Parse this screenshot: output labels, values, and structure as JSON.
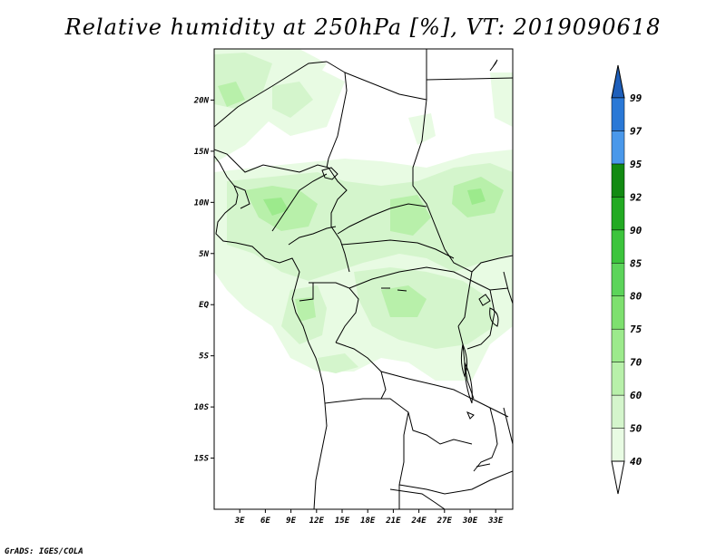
{
  "title": "Relative humidity at 250hPa [%], VT: 2019090618",
  "credit": "GrADS: IGES/COLA",
  "map": {
    "lon_range": [
      0,
      35
    ],
    "lat_range": [
      -20,
      25
    ],
    "lon_ticks": [
      "3E",
      "6E",
      "9E",
      "12E",
      "15E",
      "18E",
      "21E",
      "24E",
      "27E",
      "30E",
      "33E"
    ],
    "lat_ticks": [
      "20N",
      "15N",
      "10N",
      "5N",
      "EQ",
      "5S",
      "10S",
      "15S"
    ]
  },
  "colorbar": {
    "levels": [
      "40",
      "50",
      "60",
      "70",
      "75",
      "80",
      "85",
      "90",
      "92",
      "95",
      "97",
      "99"
    ],
    "colors": [
      "#ffffff",
      "#e8fbe3",
      "#d4f5cc",
      "#b8f0aa",
      "#9cea8c",
      "#7ee06f",
      "#5cd45a",
      "#3cc43c",
      "#22aa22",
      "#128a12",
      "#4a98ea",
      "#2a78d6",
      "#1e5fbb"
    ],
    "arrow_top": "#1e5fbb",
    "arrow_bottom": "#ffffff"
  }
}
